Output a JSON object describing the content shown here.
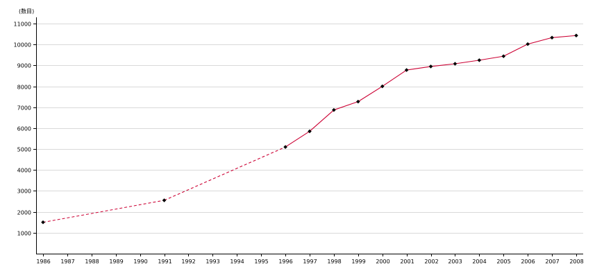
{
  "chart_data": {
    "type": "line",
    "unit_label": "(数目)",
    "x": [
      1986,
      1987,
      1988,
      1989,
      1990,
      1991,
      1992,
      1993,
      1994,
      1995,
      1996,
      1997,
      1998,
      1999,
      2000,
      2001,
      2002,
      2003,
      2004,
      2005,
      2006,
      2007,
      2008
    ],
    "x_tick_labels": [
      "1986",
      "1987",
      "1988",
      "1989",
      "1990",
      "1991",
      "1992",
      "1993",
      "1994",
      "1995",
      "1996",
      "1997",
      "1998",
      "1999",
      "2000",
      "2001",
      "2002",
      "2003",
      "2004",
      "2005",
      "2006",
      "2007",
      "2008"
    ],
    "y_ticks": [
      1000,
      2000,
      3000,
      4000,
      5000,
      6000,
      7000,
      8000,
      9000,
      10000,
      11000
    ],
    "y_tick_labels": [
      "1000",
      "2000",
      "3000",
      "4000",
      "5000",
      "6000",
      "7000",
      "8000",
      "9000",
      "10000",
      "11000"
    ],
    "ylim": [
      0,
      11300
    ],
    "grid": true,
    "series": [
      {
        "points": [
          [
            1986,
            1500
          ],
          [
            1991,
            2550
          ],
          [
            1996,
            5100
          ],
          [
            1997,
            5850
          ],
          [
            1998,
            6870
          ],
          [
            1999,
            7270
          ],
          [
            2000,
            8000
          ],
          [
            2001,
            8780
          ],
          [
            2002,
            8950
          ],
          [
            2003,
            9080
          ],
          [
            2004,
            9250
          ],
          [
            2005,
            9440
          ],
          [
            2006,
            10020
          ],
          [
            2007,
            10330
          ],
          [
            2008,
            10430
          ]
        ],
        "dashed_before": 1996,
        "color": "#cc0033",
        "marker_color": "#000000"
      }
    ]
  }
}
